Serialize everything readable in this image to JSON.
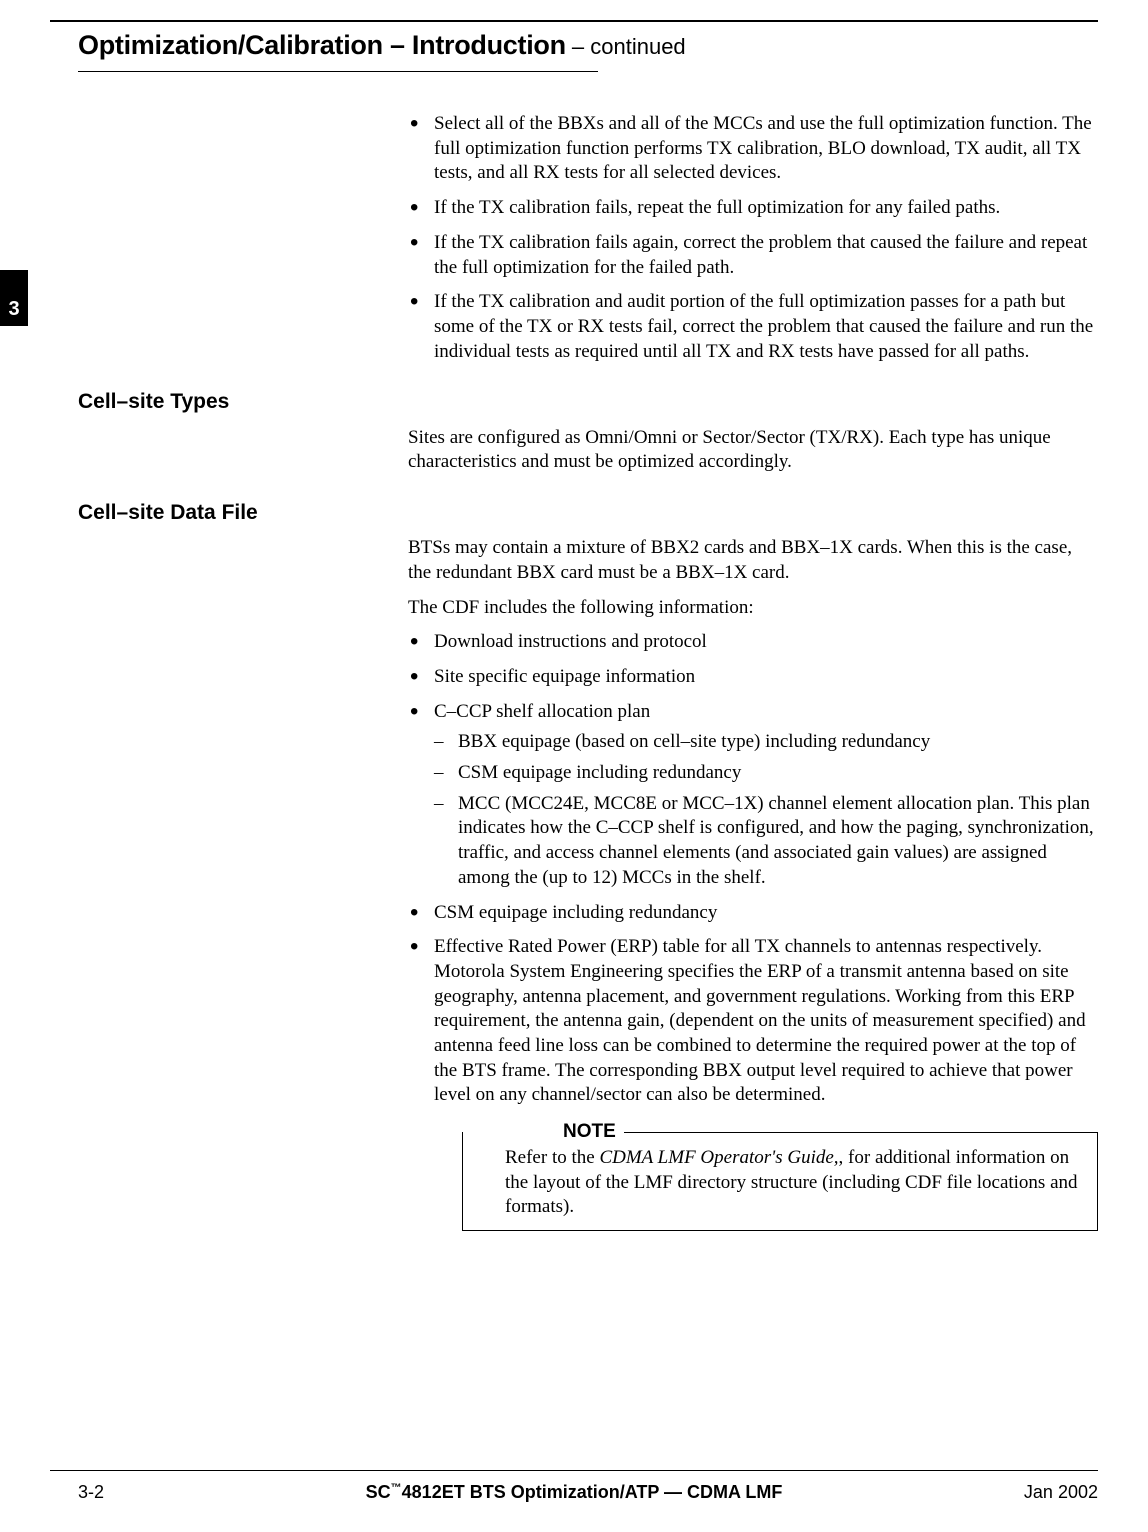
{
  "header": {
    "title_main": "Optimization/Calibration – Introduction",
    "title_cont": " – continued"
  },
  "chapter_tab": "3",
  "intro_bullets": [
    "Select all of the BBXs and all of the MCCs and use the full optimization function. The full optimization function performs TX calibration, BLO download, TX audit, all TX tests, and all RX tests for all selected devices.",
    "If the TX calibration fails, repeat the full optimization for any failed paths.",
    "If the TX calibration fails again, correct the problem that caused the failure and repeat the full optimization for the failed path.",
    "If the TX calibration and audit portion of the full optimization passes for a path but some of the TX or RX tests fail, correct the problem that caused the failure and run the individual tests as required until all TX and RX tests have passed for all paths."
  ],
  "sections": {
    "types": {
      "heading": "Cell–site Types",
      "para": "Sites are configured as Omni/Omni or Sector/Sector (TX/RX). Each type has unique characteristics and must be optimized accordingly."
    },
    "datafile": {
      "heading": "Cell–site Data File",
      "para1": "BTSs may contain a mixture of BBX2 cards and  BBX–1X cards. When this is the case, the redundant BBX card must be a BBX–1X card.",
      "para2": "The CDF includes the following information:",
      "bullets": {
        "b1": "Download instructions and protocol",
        "b2": "Site specific equipage information",
        "b3": "C–CCP shelf allocation plan",
        "b3_sub": [
          "BBX equipage (based on cell–site type) including redundancy",
          "CSM equipage including redundancy",
          "MCC (MCC24E, MCC8E or MCC–1X) channel element allocation plan. This plan indicates how the C–CCP shelf is configured, and how the paging, synchronization, traffic, and access channel elements (and associated gain values) are assigned among the (up to 12) MCCs in the shelf."
        ],
        "b4": "CSM equipage including redundancy",
        "b5": "Effective Rated Power (ERP) table for all TX channels to antennas respectively.  Motorola System Engineering specifies the ERP of a transmit antenna based on site geography, antenna placement, and government regulations. Working from this ERP requirement, the antenna gain, (dependent on the units of measurement specified) and antenna feed line loss can be combined to determine the required power at the top of the BTS frame.  The corresponding BBX output level required to achieve that power level on any channel/sector can also be determined."
      }
    }
  },
  "note": {
    "label": "NOTE",
    "text_pre": "Refer to the ",
    "text_italic": "CDMA LMF Operator's Guide,",
    "text_post": ", for additional information on the layout of the LMF directory structure (including CDF file locations and formats)."
  },
  "footer": {
    "left": "3-2",
    "center_pre": "SC",
    "center_tm": "™",
    "center_post": "4812ET BTS Optimization/ATP — CDMA LMF",
    "right": "Jan 2002"
  }
}
